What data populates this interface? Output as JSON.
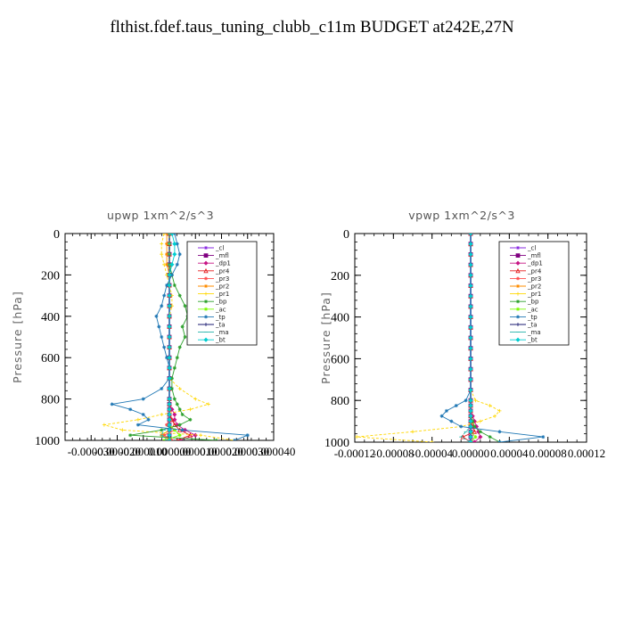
{
  "title": "flthist.fdef.taus_tuning_clubb_c11m  BUDGET at242E,27N",
  "chart_data": [
    {
      "type": "line",
      "title": "upwp   1xm^2/s^3",
      "ylabel": "Pressure [hPa]",
      "ylim": [
        1000,
        0
      ],
      "xlim": [
        -4e-05,
        4e-05
      ],
      "y_ticks": [
        "0",
        "200",
        "400",
        "600",
        "800",
        "1000"
      ],
      "x_ticks": [
        "-0.000030",
        "-0.000020",
        "-0.000010",
        "0.000000",
        "0.000010",
        "0.000020",
        "0.000030",
        "0.000040"
      ],
      "pressure": [
        0,
        50,
        100,
        150,
        200,
        250,
        300,
        350,
        400,
        450,
        500,
        550,
        600,
        650,
        700,
        750,
        800,
        825,
        850,
        875,
        900,
        925,
        950,
        975,
        1000
      ],
      "series": [
        {
          "name": "_cl",
          "color": "#8a2be2",
          "marker": "star",
          "values": [
            0,
            0,
            0,
            0,
            0,
            0,
            0,
            0,
            0,
            0,
            0,
            0,
            0,
            0,
            0,
            0,
            0,
            0,
            0,
            0,
            0,
            0,
            0,
            0,
            0
          ]
        },
        {
          "name": "_mfl",
          "color": "#800080",
          "marker": "square",
          "values": [
            0,
            0,
            0,
            0,
            0,
            0,
            0,
            0,
            0,
            0,
            0,
            0,
            0,
            0,
            0,
            0,
            0,
            0,
            0,
            0,
            0,
            0,
            0,
            0,
            0
          ]
        },
        {
          "name": "_dp1",
          "color": "#c71585",
          "marker": "diamond",
          "values": [
            0,
            0,
            0,
            0,
            0,
            0,
            0,
            0,
            0,
            0,
            0,
            0,
            0,
            0,
            0,
            0,
            0,
            0,
            1e-06,
            2e-06,
            2e-06,
            3e-06,
            6e-06,
            1e-05,
            4e-06
          ]
        },
        {
          "name": "_pr4",
          "color": "#e41a1c",
          "marker": "triangle",
          "values": [
            0,
            0,
            0,
            0,
            0,
            0,
            0,
            0,
            0,
            0,
            0,
            0,
            0,
            0,
            0,
            0,
            0,
            0,
            0,
            0,
            1e-06,
            2e-06,
            4e-06,
            8e-06,
            3e-06
          ]
        },
        {
          "name": "_pr3",
          "color": "#ff4d4d",
          "marker": "star",
          "values": [
            0,
            0,
            0,
            0,
            0,
            0,
            0,
            0,
            0,
            0,
            0,
            0,
            0,
            0,
            0,
            0,
            0,
            0,
            0,
            0,
            0,
            -1e-06,
            2e-06,
            -2e-06,
            1e-06
          ]
        },
        {
          "name": "_pr2",
          "color": "#ff8c00",
          "marker": "star",
          "values": [
            -1e-06,
            -1e-06,
            -1e-06,
            -1e-06,
            0,
            0,
            0,
            0,
            0,
            0,
            0,
            0,
            0,
            0,
            0,
            0,
            0,
            0,
            0,
            0,
            0,
            0,
            0,
            -3e-06,
            0
          ]
        },
        {
          "name": "_pr1",
          "color": "#ffd700",
          "marker": "plus",
          "values": [
            -2e-06,
            -3e-06,
            -3e-06,
            -2e-06,
            -1e-06,
            0,
            1e-06,
            1e-06,
            0,
            0,
            0,
            0,
            0,
            0,
            0,
            4e-06,
            1e-05,
            1.5e-05,
            8e-06,
            -3e-06,
            -1.2e-05,
            -2.5e-05,
            -1.8e-05,
            1.2e-05,
            2.5e-05
          ]
        },
        {
          "name": "_bp",
          "color": "#2ca02c",
          "marker": "star",
          "values": [
            0,
            0,
            0,
            0,
            1e-06,
            2e-06,
            4e-06,
            6e-06,
            7e-06,
            5e-06,
            6e-06,
            4e-06,
            3e-06,
            2e-06,
            1e-06,
            1e-06,
            2e-06,
            3e-06,
            4e-06,
            5e-06,
            8e-06,
            4e-06,
            -3e-06,
            -1.5e-05,
            1.8e-05
          ]
        },
        {
          "name": "_ac",
          "color": "#7cfc00",
          "marker": "star",
          "values": [
            0,
            0,
            0,
            0,
            0,
            0,
            0,
            0,
            0,
            0,
            0,
            0,
            0,
            0,
            0,
            0,
            0,
            0,
            0,
            0,
            0,
            0,
            2e-06,
            4e-06,
            -2e-06
          ]
        },
        {
          "name": "_tp",
          "color": "#1f77b4",
          "marker": "star",
          "values": [
            2e-06,
            3e-06,
            4e-06,
            3e-06,
            1e-06,
            -1e-06,
            -2e-06,
            -3e-06,
            -5e-06,
            -4e-06,
            -3e-06,
            -2e-06,
            -1e-06,
            0,
            0,
            -3e-06,
            -1e-05,
            -2.2e-05,
            -1.5e-05,
            -1e-05,
            -8e-06,
            -1.2e-05,
            5e-06,
            3e-05,
            2.5e-05
          ]
        },
        {
          "name": "_ta",
          "color": "#191970",
          "marker": "plus",
          "values": [
            0,
            0,
            0,
            0,
            0,
            0,
            0,
            0,
            0,
            0,
            0,
            0,
            0,
            0,
            0,
            0,
            0,
            0,
            0,
            0,
            0,
            0,
            0,
            0,
            0
          ]
        },
        {
          "name": "_ma",
          "color": "#20b2aa",
          "marker": "dash",
          "values": [
            0,
            0,
            0,
            0,
            0,
            0,
            0,
            0,
            0,
            0,
            0,
            0,
            0,
            0,
            0,
            0,
            0,
            0,
            0,
            0,
            0,
            0,
            -2e-06,
            -3e-06,
            -1e-06
          ]
        },
        {
          "name": "_bt",
          "color": "#00ced1",
          "marker": "diamond",
          "values": [
            1e-06,
            2e-06,
            2e-06,
            1e-06,
            0,
            0,
            0,
            0,
            0,
            0,
            0,
            0,
            0,
            0,
            0,
            0,
            0,
            0,
            0,
            0,
            0,
            0,
            0,
            0,
            0
          ]
        }
      ]
    },
    {
      "type": "line",
      "title": "vpwp   1xm^2/s^3",
      "ylabel": "Pressure [hPa]",
      "ylim": [
        1000,
        0
      ],
      "xlim": [
        -0.00012,
        0.00012
      ],
      "y_ticks": [
        "0",
        "200",
        "400",
        "600",
        "800",
        "1000"
      ],
      "x_ticks": [
        "-0.00012",
        "-0.00008",
        "-0.00004",
        "0.00000",
        "0.00004",
        "0.00008",
        "0.00012"
      ],
      "pressure": [
        0,
        50,
        100,
        150,
        200,
        250,
        300,
        350,
        400,
        450,
        500,
        550,
        600,
        650,
        700,
        750,
        800,
        825,
        850,
        875,
        900,
        925,
        950,
        975,
        1000
      ],
      "series": [
        {
          "name": "_cl",
          "color": "#8a2be2",
          "marker": "star",
          "values": [
            0,
            0,
            0,
            0,
            0,
            0,
            0,
            0,
            0,
            0,
            0,
            0,
            0,
            0,
            0,
            0,
            0,
            0,
            0,
            0,
            0,
            0,
            0,
            0,
            0
          ]
        },
        {
          "name": "_mfl",
          "color": "#800080",
          "marker": "square",
          "values": [
            0,
            0,
            0,
            0,
            0,
            0,
            0,
            0,
            0,
            0,
            0,
            0,
            0,
            0,
            0,
            0,
            0,
            0,
            0,
            0,
            0,
            0,
            0,
            0,
            0
          ]
        },
        {
          "name": "_dp1",
          "color": "#c71585",
          "marker": "diamond",
          "values": [
            0,
            0,
            0,
            0,
            0,
            0,
            0,
            0,
            0,
            0,
            0,
            0,
            0,
            0,
            0,
            0,
            0,
            0,
            0,
            2e-06,
            4e-06,
            6e-06,
            8e-06,
            1e-05,
            4e-06
          ]
        },
        {
          "name": "_pr4",
          "color": "#e41a1c",
          "marker": "triangle",
          "values": [
            0,
            0,
            0,
            0,
            0,
            0,
            0,
            0,
            0,
            0,
            0,
            0,
            0,
            0,
            0,
            0,
            0,
            0,
            0,
            0,
            0,
            2e-06,
            4e-06,
            -8e-06,
            0
          ]
        },
        {
          "name": "_pr3",
          "color": "#ff4d4d",
          "marker": "star",
          "values": [
            0,
            0,
            0,
            0,
            0,
            0,
            0,
            0,
            0,
            0,
            0,
            0,
            0,
            0,
            0,
            0,
            0,
            0,
            0,
            0,
            0,
            0,
            0,
            0,
            0
          ]
        },
        {
          "name": "_pr2",
          "color": "#ff8c00",
          "marker": "star",
          "values": [
            0,
            0,
            0,
            0,
            0,
            0,
            0,
            0,
            0,
            0,
            0,
            0,
            0,
            0,
            0,
            0,
            0,
            0,
            0,
            0,
            0,
            0,
            0,
            0,
            0
          ]
        },
        {
          "name": "_pr1",
          "color": "#ffd700",
          "marker": "plus",
          "values": [
            0,
            0,
            0,
            0,
            0,
            0,
            0,
            0,
            0,
            0,
            0,
            0,
            0,
            0,
            0,
            0,
            5e-06,
            2e-05,
            3e-05,
            2.5e-05,
            1e-05,
            -1e-05,
            -6e-05,
            -0.000118,
            -4e-05
          ]
        },
        {
          "name": "_bp",
          "color": "#2ca02c",
          "marker": "star",
          "values": [
            0,
            0,
            0,
            0,
            0,
            0,
            0,
            0,
            0,
            0,
            0,
            0,
            0,
            0,
            0,
            0,
            0,
            0,
            0,
            0,
            2e-06,
            4e-06,
            1e-05,
            2e-05,
            3e-05
          ]
        },
        {
          "name": "_ac",
          "color": "#7cfc00",
          "marker": "star",
          "values": [
            0,
            0,
            0,
            0,
            0,
            0,
            0,
            0,
            0,
            0,
            0,
            0,
            0,
            0,
            0,
            0,
            0,
            0,
            0,
            0,
            0,
            0,
            0,
            5e-06,
            0
          ]
        },
        {
          "name": "_tp",
          "color": "#1f77b4",
          "marker": "star",
          "values": [
            0,
            0,
            0,
            0,
            0,
            0,
            0,
            0,
            0,
            0,
            0,
            0,
            0,
            0,
            0,
            0,
            -5e-06,
            -1.5e-05,
            -2.5e-05,
            -3e-05,
            -2e-05,
            -1e-05,
            3e-05,
            7.5e-05,
            3e-05
          ]
        },
        {
          "name": "_ta",
          "color": "#191970",
          "marker": "plus",
          "values": [
            0,
            0,
            0,
            0,
            0,
            0,
            0,
            0,
            0,
            0,
            0,
            0,
            0,
            0,
            0,
            0,
            0,
            0,
            0,
            0,
            0,
            0,
            0,
            0,
            0
          ]
        },
        {
          "name": "_ma",
          "color": "#20b2aa",
          "marker": "dash",
          "values": [
            0,
            0,
            0,
            0,
            0,
            0,
            0,
            0,
            0,
            0,
            0,
            0,
            0,
            0,
            0,
            0,
            0,
            0,
            0,
            0,
            0,
            0,
            -5e-06,
            -1e-05,
            0
          ]
        },
        {
          "name": "_bt",
          "color": "#00ced1",
          "marker": "diamond",
          "values": [
            0,
            0,
            0,
            0,
            0,
            0,
            0,
            0,
            0,
            0,
            0,
            0,
            0,
            0,
            0,
            0,
            0,
            0,
            0,
            0,
            0,
            0,
            0,
            0,
            0
          ]
        }
      ]
    }
  ]
}
